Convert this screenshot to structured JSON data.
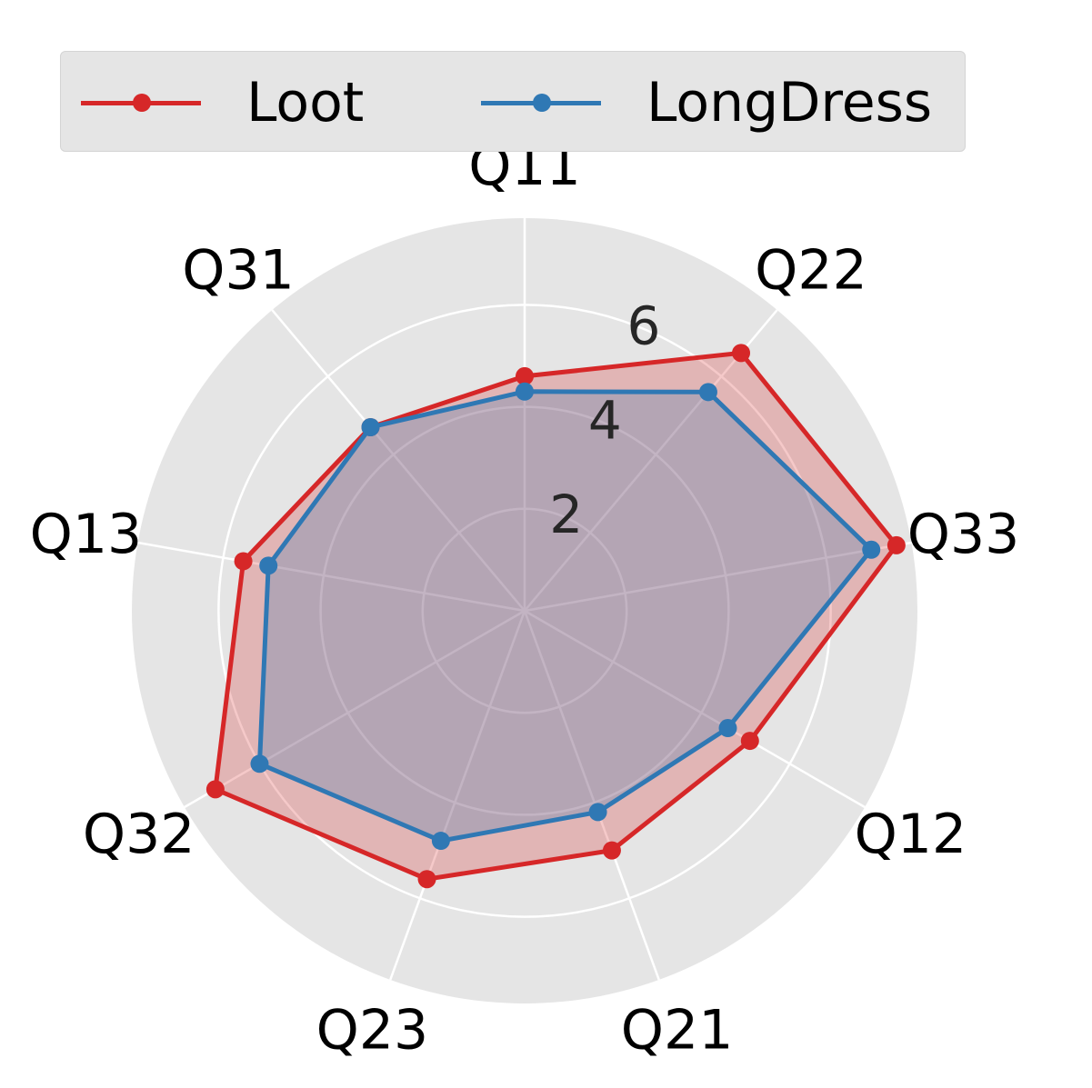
{
  "chart_data": {
    "type": "radar",
    "categories": [
      "Q11",
      "Q22",
      "Q33",
      "Q12",
      "Q21",
      "Q23",
      "Q32",
      "Q13",
      "Q31"
    ],
    "series": [
      {
        "name": "Loot",
        "color": "#d62728",
        "values": [
          4.6,
          6.6,
          7.4,
          5.1,
          5.0,
          5.6,
          7.0,
          5.6,
          4.7
        ]
      },
      {
        "name": "LongDress",
        "color": "#2f78b4",
        "values": [
          4.3,
          5.6,
          6.9,
          4.6,
          4.2,
          4.8,
          6.0,
          5.1,
          4.7
        ]
      }
    ],
    "radial_ticks": [
      "2",
      "4",
      "6"
    ],
    "rlim": [
      0,
      7.7
    ],
    "grid": true,
    "legend_position": "top"
  }
}
